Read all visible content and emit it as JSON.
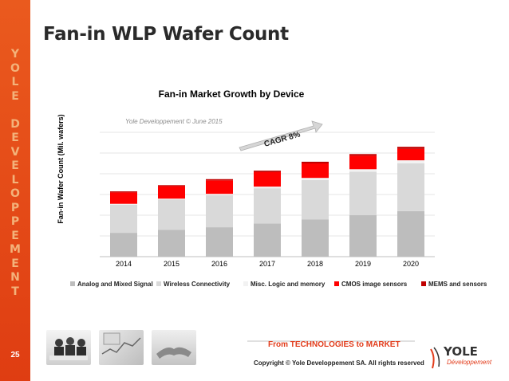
{
  "slide": {
    "title": "Fan-in WLP Wafer Count",
    "side_letters": [
      "Y",
      "O",
      "L",
      "E",
      "",
      "D",
      "E",
      "V",
      "E",
      "L",
      "O",
      "P",
      "P",
      "E",
      "M",
      "E",
      "N",
      "T"
    ],
    "page_number": "25"
  },
  "footer": {
    "tagline_from": "From ",
    "tagline_tech": "TECHNOLOGIES",
    "tagline_to": " to ",
    "tagline_market": "MARKET",
    "copyright": "Copyright © Yole Developpement SA. All rights reserved",
    "logo_name": "YOLE",
    "logo_sub": "Développement"
  },
  "chart_data": {
    "type": "bar",
    "stacked": true,
    "title": "Fan-in Market Growth by Device",
    "watermark": "Yole Developpement © June 2015",
    "ylabel": "Fan-in  Wafer Count (Mil. wafers)",
    "xlabel": "",
    "categories": [
      "2014",
      "2015",
      "2016",
      "2017",
      "2018",
      "2019",
      "2020"
    ],
    "ylim": [
      0,
      6
    ],
    "grid": true,
    "y_tick_labels_shown": false,
    "series": [
      {
        "name": "Analog and Mixed Signal",
        "color": "#bdbdbd",
        "values": [
          1.15,
          1.3,
          1.42,
          1.6,
          1.8,
          2.0,
          2.2
        ]
      },
      {
        "name": "Wireless Connectivity",
        "color": "#d9d9d9",
        "values": [
          1.35,
          1.45,
          1.55,
          1.7,
          1.9,
          2.1,
          2.3
        ]
      },
      {
        "name": "Misc. Logic and memory",
        "color": "#f2f2f2",
        "values": [
          0.05,
          0.05,
          0.06,
          0.08,
          0.1,
          0.12,
          0.15
        ]
      },
      {
        "name": "CMOS image sensors",
        "color": "#ff0000",
        "values": [
          0.55,
          0.6,
          0.65,
          0.7,
          0.7,
          0.65,
          0.55
        ]
      },
      {
        "name": "MEMS and sensors",
        "color": "#c00000",
        "values": [
          0.05,
          0.05,
          0.06,
          0.07,
          0.08,
          0.08,
          0.1
        ]
      }
    ],
    "annotation": "CAGR 8%",
    "legend_position": "bottom"
  },
  "colors": {
    "sidebar": "#e8521b",
    "accent_red": "#e23b1a",
    "arrow": "#c9c9c9"
  }
}
